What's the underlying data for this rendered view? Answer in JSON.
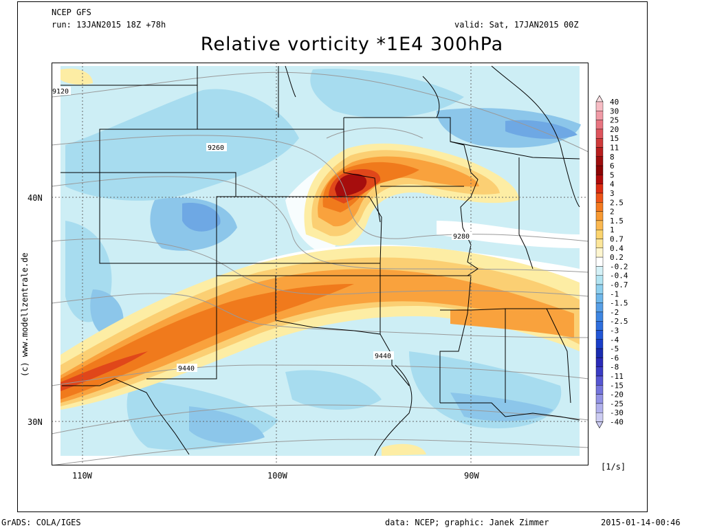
{
  "header": {
    "model": "NCEP GFS",
    "run": "run: 13JAN2015 18Z +78h",
    "valid": "valid: Sat, 17JAN2015 00Z",
    "title": "Relative vorticity *1E4 300hPa"
  },
  "map": {
    "lat_labels": [
      "40N",
      "30N"
    ],
    "lon_labels": [
      "110W",
      "100W",
      "90W"
    ],
    "contour_labels": [
      "9120",
      "9260",
      "9280",
      "9440",
      "9440"
    ],
    "palette": {
      "neg_light": "#cdeef5",
      "neg_mid": "#a7dcef",
      "neg_blue": "#8cc6ea",
      "neg_dark": "#6ea8e4",
      "pos_yellow": "#fdeda4",
      "pos_gold": "#fbcf73",
      "pos_orange": "#f9a23d",
      "pos_deep": "#f07a1c",
      "pos_red": "#e0471a",
      "pos_dark": "#a60d0d"
    }
  },
  "colorbar": {
    "levels": [
      "40",
      "30",
      "25",
      "20",
      "15",
      "11",
      "8",
      "6",
      "5",
      "4",
      "3",
      "2.5",
      "2",
      "1.5",
      "1",
      "0.7",
      "0.4",
      "0.2",
      "-0.2",
      "-0.4",
      "-0.7",
      "-1",
      "-1.5",
      "-2",
      "-2.5",
      "-3",
      "-4",
      "-5",
      "-6",
      "-8",
      "-11",
      "-15",
      "-20",
      "-25",
      "-30",
      "-40"
    ],
    "colors": [
      "#fbe0e4",
      "#f7bcc4",
      "#f09aa6",
      "#e87480",
      "#de545c",
      "#cf3a3a",
      "#b81e1e",
      "#9e0d0d",
      "#8c0404",
      "#b00a0a",
      "#dc2c12",
      "#ee5418",
      "#f47a20",
      "#f89a32",
      "#fbb850",
      "#fcd46e",
      "#fde69a",
      "#fef6d0",
      "#ffffff",
      "#d4f1f7",
      "#b2e4f2",
      "#8fd0ee",
      "#6fb7ea",
      "#579fe6",
      "#3e86e2",
      "#2f6fde",
      "#2256d6",
      "#1a3ec8",
      "#1a2cb0",
      "#2a2bb8",
      "#3a3cc4",
      "#5656d2",
      "#7474dc",
      "#9292e4",
      "#b0b0ec",
      "#ccccf2"
    ],
    "unit": "[1/s]"
  },
  "footer": {
    "left": "GrADS: COLA/IGES",
    "data": "data: NCEP; graphic: Janek Zimmer",
    "timestamp": "2015-01-14-00:46",
    "credit": "(c) www.modellzentrale.de"
  }
}
